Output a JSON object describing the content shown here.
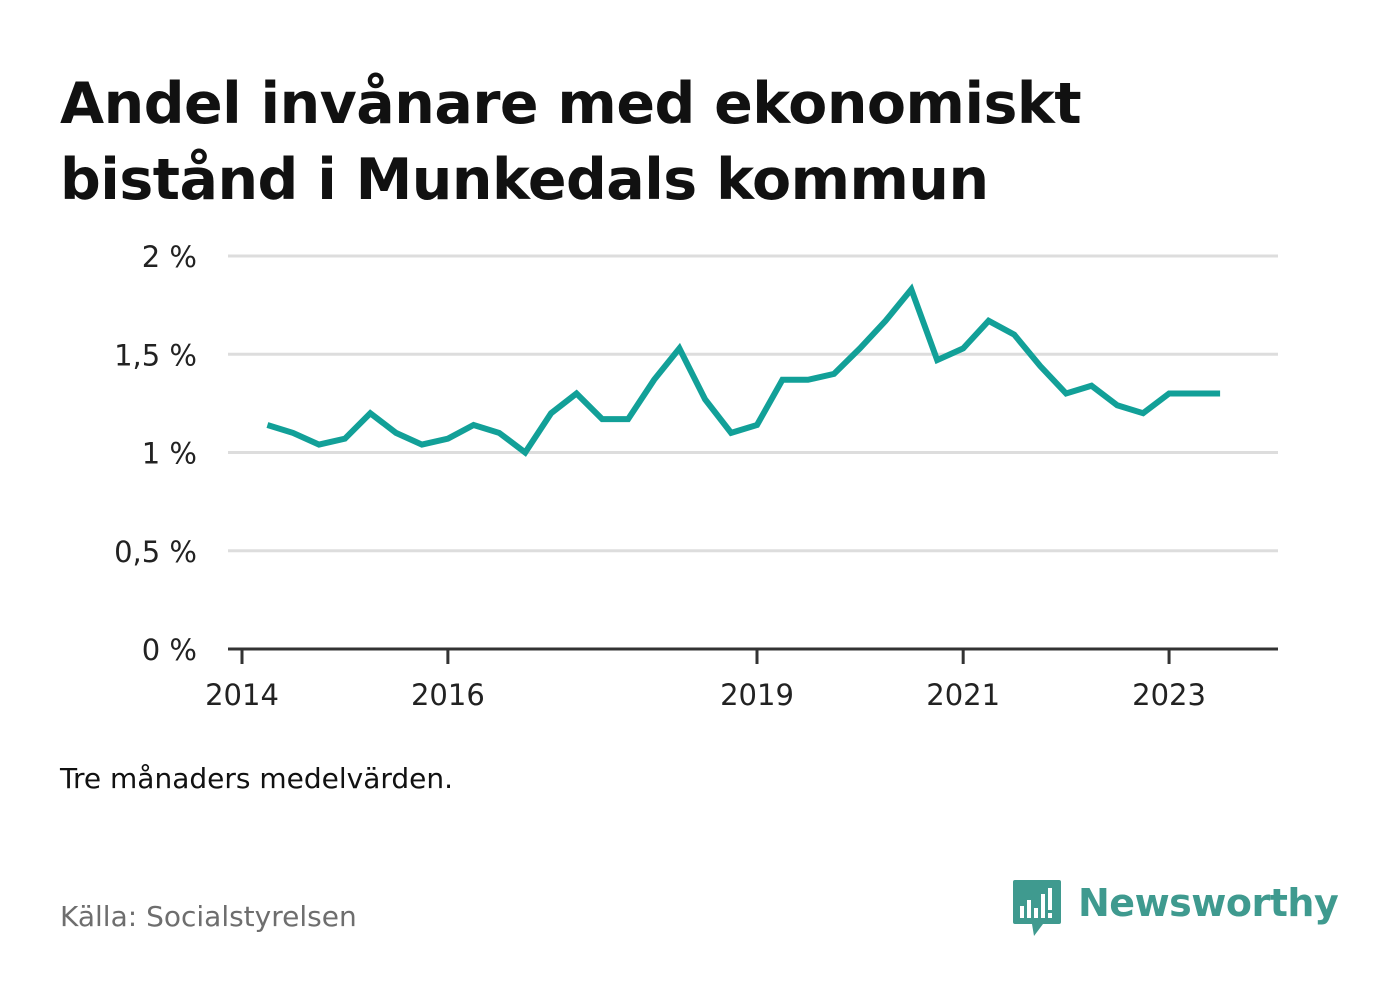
{
  "header": {
    "title_line1": "Andel invånare med ekonomiskt",
    "title_line2": "bistånd i Munkedals kommun"
  },
  "footer": {
    "note": "Tre månaders medelvärden.",
    "source": "Källa: Socialstyrelsen",
    "brand": "Newsworthy"
  },
  "colors": {
    "line": "#12a098",
    "grid": "#dddddd",
    "axis": "#333333",
    "brand": "#3f9a8f"
  },
  "icons": {
    "brand": "bar-chart-speech-bubble-icon"
  },
  "chart_data": {
    "type": "line",
    "title": "Andel invånare med ekonomiskt bistånd i Munkedals kommun",
    "xlabel": "",
    "ylabel": "",
    "y_unit": "%",
    "ylim": [
      0,
      2
    ],
    "y_ticks": [
      0,
      0.5,
      1,
      1.5,
      2
    ],
    "y_tick_labels": [
      "0 %",
      "0,5 %",
      "1 %",
      "1,5 %",
      "2 %"
    ],
    "x_ticks": [
      "2014-01-01",
      "2016-01-01",
      "2019-01-01",
      "2021-01-01",
      "2023-01-01"
    ],
    "x_tick_labels": [
      "2014",
      "2016",
      "2019",
      "2021",
      "2023"
    ],
    "xlim": [
      "2014-01-01",
      "2024-01-01"
    ],
    "grid": true,
    "legend": "none",
    "series": [
      {
        "x": [
          "2014-04-01",
          "2014-07-01",
          "2014-10-01",
          "2015-01-01",
          "2015-04-01",
          "2015-07-01",
          "2015-10-01",
          "2016-01-01",
          "2016-04-01",
          "2016-07-01",
          "2016-10-01",
          "2017-01-01",
          "2017-04-01",
          "2017-07-01",
          "2017-10-01",
          "2018-01-01",
          "2018-04-01",
          "2018-07-01",
          "2018-10-01",
          "2019-01-01",
          "2019-04-01",
          "2019-07-01",
          "2019-10-01",
          "2020-01-01",
          "2020-04-01",
          "2020-07-01",
          "2020-10-01",
          "2021-01-01",
          "2021-04-01",
          "2021-07-01",
          "2021-10-01",
          "2022-01-01",
          "2022-04-01",
          "2022-07-01",
          "2022-10-01",
          "2023-01-01",
          "2023-04-01",
          "2023-07-01"
        ],
        "values": [
          1.14,
          1.1,
          1.04,
          1.07,
          1.2,
          1.1,
          1.04,
          1.07,
          1.14,
          1.1,
          1.0,
          1.2,
          1.3,
          1.17,
          1.17,
          1.37,
          1.53,
          1.27,
          1.1,
          1.14,
          1.37,
          1.37,
          1.4,
          1.53,
          1.67,
          1.83,
          1.47,
          1.53,
          1.67,
          1.6,
          1.44,
          1.3,
          1.34,
          1.24,
          1.2,
          1.3,
          1.3,
          1.3
        ]
      }
    ]
  }
}
